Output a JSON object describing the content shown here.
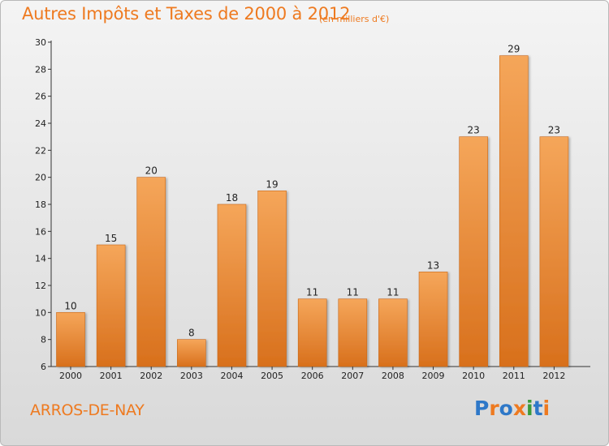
{
  "header": {
    "title": "Autres Impôts et Taxes de 2000 à 2012",
    "subtitle": "(en milliers d'€)"
  },
  "footer": {
    "commune": "ARROS-DE-NAY",
    "logo": [
      "P",
      "r",
      "o",
      "x",
      "i",
      "t",
      "i"
    ]
  },
  "colors": {
    "accent": "#ee7a20",
    "bar_top": "#f5a65a",
    "bar_bottom": "#d8701c",
    "logo_letters": [
      "#2e78c8",
      "#ee7a20",
      "#2e78c8",
      "#ee7a20",
      "#3a9a3a",
      "#2e78c8",
      "#ee7a20"
    ]
  },
  "chart_data": {
    "type": "bar",
    "categories": [
      "2000",
      "2001",
      "2002",
      "2003",
      "2004",
      "2005",
      "2006",
      "2007",
      "2008",
      "2009",
      "2010",
      "2011",
      "2012"
    ],
    "values": [
      10,
      15,
      20,
      8,
      18,
      19,
      11,
      11,
      11,
      13,
      23,
      29,
      23
    ],
    "ylim": [
      6,
      30
    ],
    "yticks": [
      "6",
      "8",
      "10",
      "12",
      "14",
      "16",
      "18",
      "20",
      "22",
      "24",
      "26",
      "28",
      "30"
    ],
    "grid": false,
    "legend": "none"
  }
}
